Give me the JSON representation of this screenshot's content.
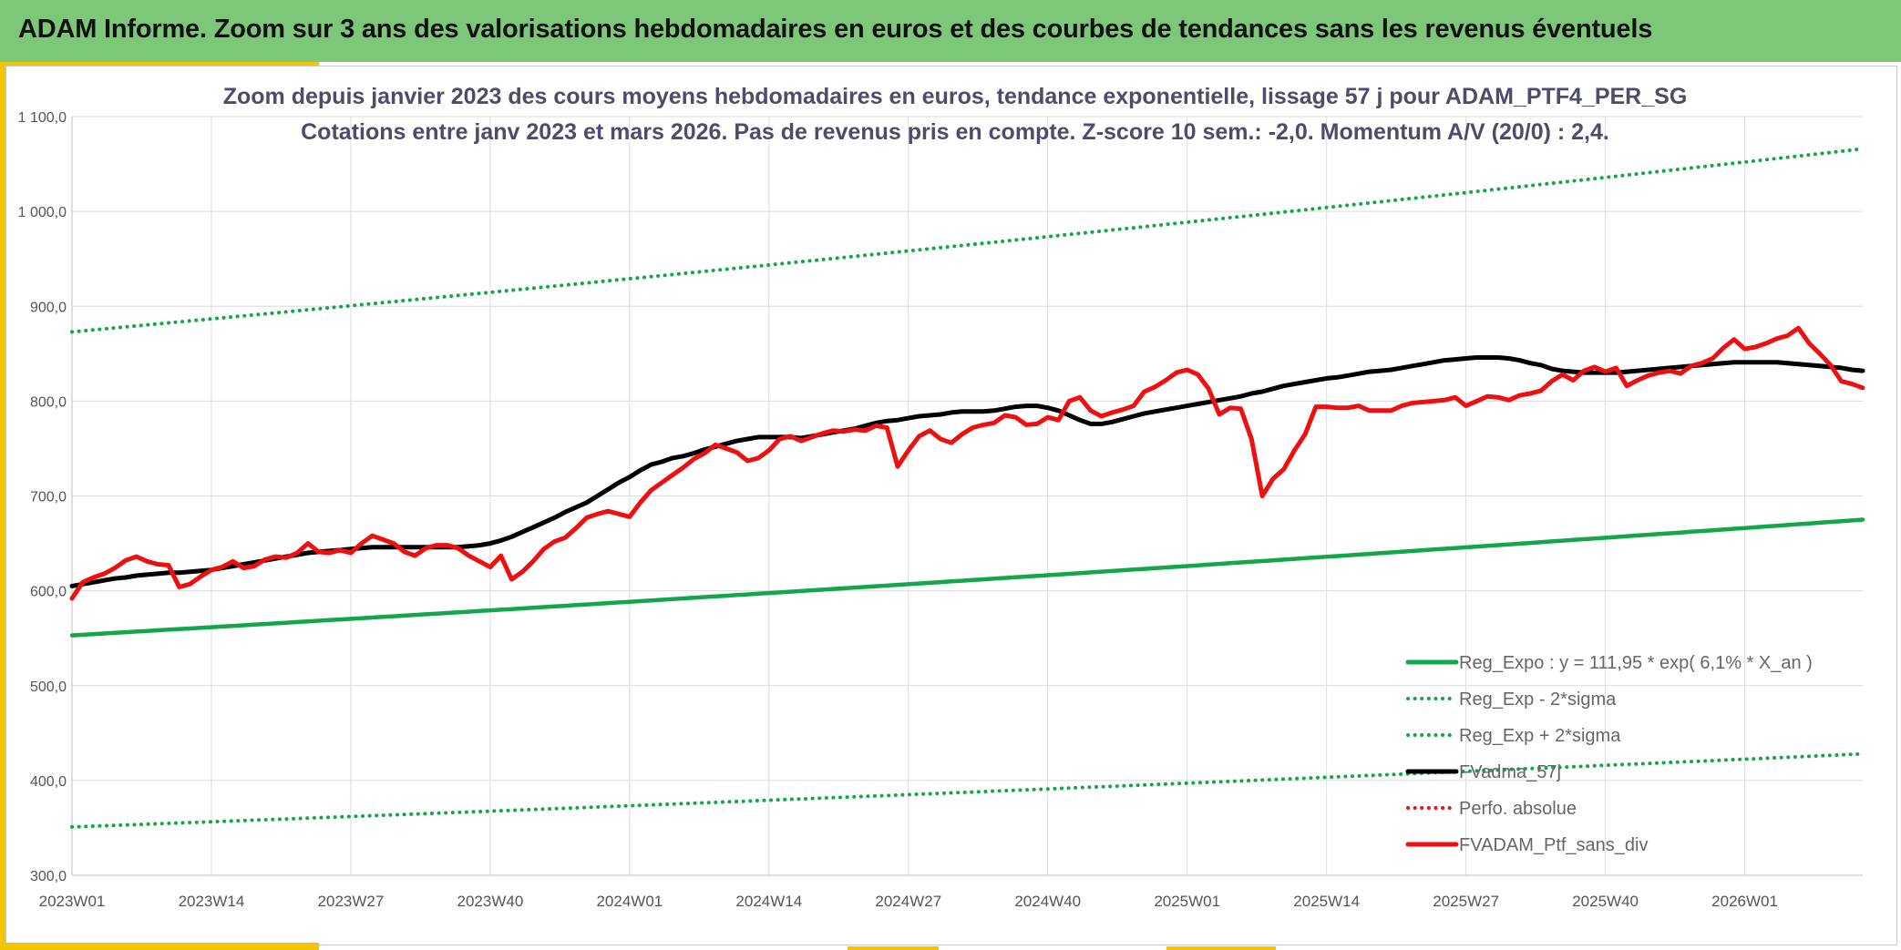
{
  "header": {
    "title": "ADAM Informe. Zoom sur 3 ans des valorisations hebdomadaires en euros et des courbes de tendances sans les revenus éventuels"
  },
  "colors": {
    "header_bg": "#7dc878",
    "accent": "#f3c400",
    "green": "#13a64a",
    "black": "#000000",
    "red": "#ee1010"
  },
  "chart_data": {
    "type": "line",
    "title": "Zoom depuis janvier 2023 des cours moyens hebdomadaires en euros, tendance exponentielle, lissage 57 j pour ADAM_PTF4_PER_SG",
    "subtitle": "Cotations entre janv 2023 et mars 2026. Pas de revenus pris en compte. Z-score 10 sem.: -2,0. Momentum A/V (20/0) : 2,4.",
    "ylim": [
      300,
      1100
    ],
    "yticks": [
      "300,0",
      "400,0",
      "500,0",
      "600,0",
      "700,0",
      "800,0",
      "900,0",
      "1 000,0",
      "1 100,0"
    ],
    "xticks": [
      "2023W01",
      "2023W14",
      "2023W27",
      "2023W40",
      "2024W01",
      "2024W14",
      "2024W27",
      "2024W40",
      "2025W01",
      "2025W14",
      "2025W27",
      "2025W40",
      "2026W01"
    ],
    "weeks_count": 168,
    "grid": true,
    "legend_position": "bottom-right",
    "series": [
      {
        "name": "Reg_Expo : y = 111,95 * exp( 6,1% *  X_an )",
        "style": "solid",
        "color": "#13a64a",
        "start": 553,
        "end": 675
      },
      {
        "name": "Reg_Exp - 2*sigma",
        "style": "dotted",
        "color": "#13a64a",
        "start": 351,
        "end": 428
      },
      {
        "name": "Reg_Exp + 2*sigma",
        "style": "dotted",
        "color": "#13a64a",
        "start": 873,
        "end": 1066
      },
      {
        "name": "FVadma_57j",
        "style": "solid",
        "color": "#000000",
        "values": [
          605,
          607,
          609,
          611,
          613,
          614,
          616,
          617,
          618,
          619,
          619,
          620,
          621,
          622,
          624,
          626,
          628,
          630,
          632,
          634,
          636,
          638,
          640,
          641,
          642,
          643,
          644,
          645,
          646,
          646,
          646,
          646,
          646,
          646,
          646,
          646,
          646,
          647,
          648,
          650,
          653,
          657,
          662,
          667,
          672,
          677,
          683,
          688,
          693,
          700,
          707,
          714,
          720,
          727,
          733,
          736,
          740,
          742,
          745,
          749,
          752,
          755,
          758,
          760,
          762,
          762,
          762,
          762,
          761,
          763,
          765,
          767,
          769,
          771,
          774,
          777,
          779,
          780,
          782,
          784,
          785,
          786,
          788,
          789,
          789,
          789,
          790,
          792,
          794,
          795,
          795,
          793,
          790,
          785,
          780,
          776,
          776,
          778,
          781,
          784,
          787,
          789,
          791,
          793,
          795,
          797,
          799,
          801,
          803,
          805,
          808,
          810,
          813,
          816,
          818,
          820,
          822,
          824,
          825,
          827,
          829,
          831,
          832,
          833,
          835,
          837,
          839,
          841,
          843,
          844,
          845,
          846,
          846,
          846,
          845,
          843,
          840,
          838,
          834,
          832,
          831,
          830,
          830,
          830,
          830,
          831,
          832,
          833,
          834,
          835,
          836,
          837,
          838,
          839,
          840,
          841,
          841,
          841,
          841,
          841,
          840,
          839,
          838,
          837,
          836,
          835,
          833,
          832
        ]
      },
      {
        "name": "Perfo. absolue",
        "style": "dotted",
        "color": "#ee1010",
        "values": []
      },
      {
        "name": "FVADAM_Ptf_sans_div",
        "style": "solid",
        "color": "#ee1010",
        "values": [
          592,
          609,
          614,
          618,
          624,
          632,
          636,
          631,
          628,
          627,
          604,
          607,
          615,
          622,
          625,
          631,
          624,
          626,
          633,
          636,
          635,
          640,
          650,
          641,
          640,
          643,
          640,
          650,
          658,
          654,
          650,
          641,
          637,
          645,
          648,
          648,
          645,
          637,
          631,
          625,
          637,
          612,
          620,
          631,
          644,
          652,
          656,
          666,
          677,
          681,
          684,
          681,
          678,
          693,
          706,
          714,
          722,
          730,
          739,
          745,
          754,
          750,
          746,
          737,
          740,
          748,
          760,
          763,
          758,
          762,
          766,
          769,
          768,
          770,
          769,
          774,
          772,
          731,
          748,
          763,
          769,
          760,
          756,
          765,
          772,
          775,
          777,
          785,
          783,
          775,
          776,
          783,
          780,
          800,
          804,
          790,
          784,
          788,
          791,
          795,
          810,
          815,
          822,
          830,
          833,
          828,
          813,
          786,
          793,
          792,
          760,
          700,
          718,
          728,
          748,
          765,
          794,
          794,
          793,
          793,
          795,
          790,
          790,
          790,
          795,
          798,
          799,
          800,
          801,
          804,
          795,
          800,
          805,
          804,
          801,
          806,
          808,
          811,
          821,
          828,
          822,
          832,
          836,
          831,
          835,
          816,
          822,
          827,
          830,
          832,
          829,
          837,
          840,
          845,
          856,
          865,
          855,
          857,
          861,
          866,
          869,
          877,
          861,
          850,
          838,
          821,
          818,
          814
        ]
      }
    ]
  }
}
